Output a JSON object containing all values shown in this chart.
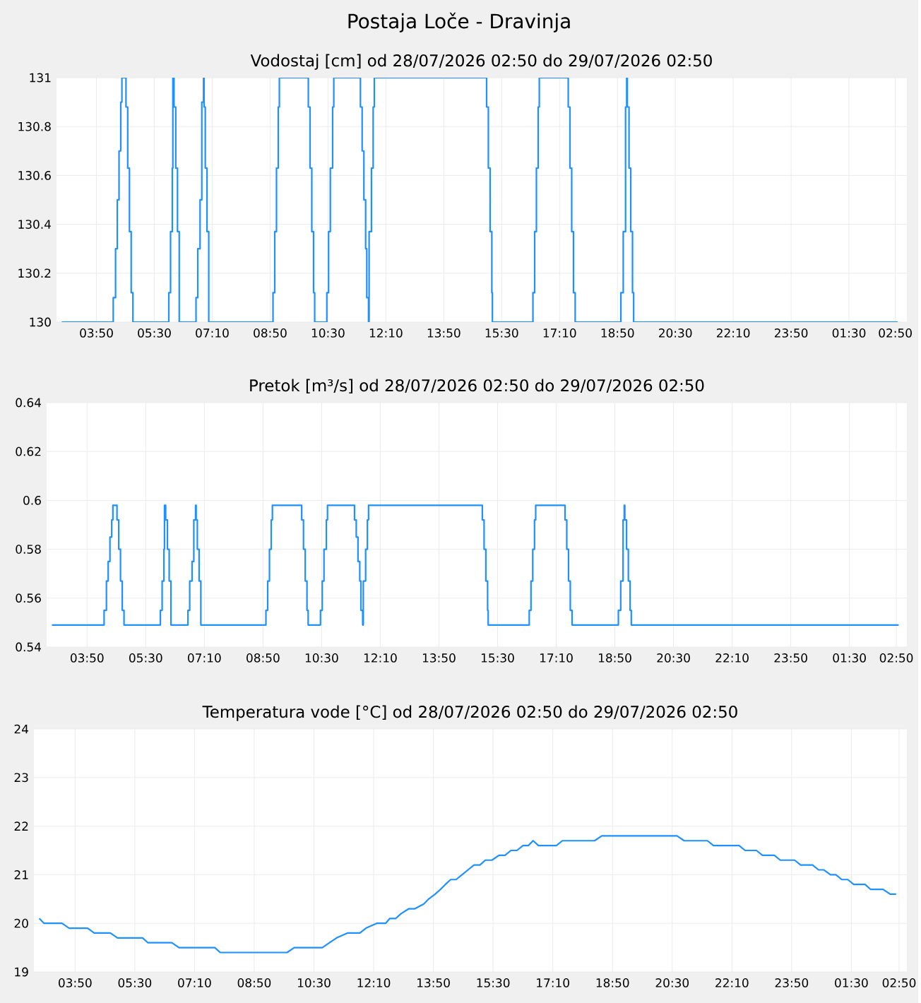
{
  "chart_data": [
    {
      "type": "step",
      "title": "Postaja Loče - Dravinja",
      "subtitle": "Vodostaj [cm] od 28/07/2026 02:50 do 29/07/2026 02:50",
      "color": "#1e90ff",
      "grid": true,
      "marker": "none",
      "line_style": "solid",
      "x": [
        "2026-07-28T02:50",
        "2026-07-28T04:19",
        "2026-07-28T04:23",
        "2026-07-28T04:26",
        "2026-07-28T04:29",
        "2026-07-28T04:32",
        "2026-07-28T04:34",
        "2026-07-28T04:41",
        "2026-07-28T04:44",
        "2026-07-28T04:47",
        "2026-07-28T04:50",
        "2026-07-28T04:53",
        "2026-07-28T05:55",
        "2026-07-28T05:58",
        "2026-07-28T06:01",
        "2026-07-28T06:02",
        "2026-07-28T06:04",
        "2026-07-28T06:07",
        "2026-07-28T06:10",
        "2026-07-28T06:13",
        "2026-07-28T06:42",
        "2026-07-28T06:45",
        "2026-07-28T06:49",
        "2026-07-28T06:52",
        "2026-07-28T06:55",
        "2026-07-28T06:56",
        "2026-07-28T06:58",
        "2026-07-28T07:01",
        "2026-07-28T07:04",
        "2026-07-28T08:55",
        "2026-07-28T08:58",
        "2026-07-28T09:01",
        "2026-07-28T09:04",
        "2026-07-28T09:06",
        "2026-07-28T09:56",
        "2026-07-28T09:59",
        "2026-07-28T10:02",
        "2026-07-28T10:05",
        "2026-07-28T10:07",
        "2026-07-28T10:28",
        "2026-07-28T10:31",
        "2026-07-28T10:34",
        "2026-07-28T10:38",
        "2026-07-28T10:40",
        "2026-07-28T11:26",
        "2026-07-28T11:29",
        "2026-07-28T11:32",
        "2026-07-28T11:35",
        "2026-07-28T11:37",
        "2026-07-28T11:40",
        "2026-07-28T11:41",
        "2026-07-28T11:45",
        "2026-07-28T11:48",
        "2026-07-28T11:50",
        "2026-07-28T15:04",
        "2026-07-28T15:07",
        "2026-07-28T15:10",
        "2026-07-28T15:13",
        "2026-07-28T15:14",
        "2026-07-28T16:24",
        "2026-07-28T16:27",
        "2026-07-28T16:30",
        "2026-07-28T16:33",
        "2026-07-28T16:35",
        "2026-07-28T17:25",
        "2026-07-28T17:28",
        "2026-07-28T17:31",
        "2026-07-28T17:34",
        "2026-07-28T17:37",
        "2026-07-28T18:56",
        "2026-07-28T19:00",
        "2026-07-28T19:04",
        "2026-07-28T19:06",
        "2026-07-28T19:07",
        "2026-07-28T19:10",
        "2026-07-28T19:13",
        "2026-07-28T19:16",
        "2026-07-28T19:18",
        "2026-07-29T02:54"
      ],
      "values": [
        130,
        130.1,
        130.3,
        130.5,
        130.7,
        130.9,
        131,
        130.88,
        130.63,
        130.37,
        130.12,
        130,
        130.12,
        130.37,
        130.63,
        131,
        130.88,
        130.63,
        130.37,
        130,
        130.1,
        130.3,
        130.5,
        130.9,
        131,
        130.88,
        130.63,
        130.37,
        130,
        130.12,
        130.37,
        130.63,
        130.88,
        131,
        130.88,
        130.63,
        130.37,
        130.12,
        130,
        130.12,
        130.37,
        130.63,
        130.88,
        131,
        130.88,
        130.7,
        130.5,
        130.3,
        130.1,
        130,
        130.37,
        130.63,
        130.88,
        131,
        130.88,
        130.63,
        130.37,
        130.12,
        130,
        130.12,
        130.37,
        130.63,
        130.88,
        131,
        130.88,
        130.63,
        130.37,
        130.12,
        130,
        130.12,
        130.37,
        130.88,
        131,
        130.88,
        130.63,
        130.37,
        130.12,
        130,
        130
      ],
      "xlim": [
        "2026-07-28T02:41",
        "2026-07-29T03:10"
      ],
      "ylim": [
        130,
        131
      ],
      "yticks": [
        130,
        130.2,
        130.4,
        130.6,
        130.8,
        131
      ],
      "xticks": [
        {
          "value": "2026-07-28T03:50",
          "label": "03:50"
        },
        {
          "value": "2026-07-28T05:30",
          "label": "05:30"
        },
        {
          "value": "2026-07-28T07:10",
          "label": "07:10"
        },
        {
          "value": "2026-07-28T08:50",
          "label": "08:50"
        },
        {
          "value": "2026-07-28T10:30",
          "label": "10:30"
        },
        {
          "value": "2026-07-28T12:10",
          "label": "12:10"
        },
        {
          "value": "2026-07-28T13:50",
          "label": "13:50"
        },
        {
          "value": "2026-07-28T15:30",
          "label": "15:30"
        },
        {
          "value": "2026-07-28T17:10",
          "label": "17:10"
        },
        {
          "value": "2026-07-28T18:50",
          "label": "18:50"
        },
        {
          "value": "2026-07-28T20:30",
          "label": "20:30"
        },
        {
          "value": "2026-07-28T22:10",
          "label": "22:10"
        },
        {
          "value": "2026-07-28T23:50",
          "label": "23:50"
        },
        {
          "value": "2026-07-29T01:30",
          "label": "01:30"
        },
        {
          "value": "2026-07-29T02:50",
          "label": "02:50"
        }
      ]
    },
    {
      "type": "step",
      "title": "Pretok [m³/s] od 28/07/2026 02:50 do 29/07/2026 02:50",
      "color": "#1e90ff",
      "grid": true,
      "marker": "none",
      "line_style": "solid",
      "x": [
        "2026-07-28T02:50",
        "2026-07-28T04:19",
        "2026-07-28T04:23",
        "2026-07-28T04:26",
        "2026-07-28T04:29",
        "2026-07-28T04:32",
        "2026-07-28T04:34",
        "2026-07-28T04:41",
        "2026-07-28T04:44",
        "2026-07-28T04:47",
        "2026-07-28T04:50",
        "2026-07-28T04:53",
        "2026-07-28T05:55",
        "2026-07-28T05:58",
        "2026-07-28T06:01",
        "2026-07-28T06:02",
        "2026-07-28T06:04",
        "2026-07-28T06:07",
        "2026-07-28T06:10",
        "2026-07-28T06:13",
        "2026-07-28T06:42",
        "2026-07-28T06:45",
        "2026-07-28T06:49",
        "2026-07-28T06:52",
        "2026-07-28T06:55",
        "2026-07-28T06:56",
        "2026-07-28T06:58",
        "2026-07-28T07:01",
        "2026-07-28T07:04",
        "2026-07-28T08:55",
        "2026-07-28T08:58",
        "2026-07-28T09:01",
        "2026-07-28T09:04",
        "2026-07-28T09:06",
        "2026-07-28T09:56",
        "2026-07-28T09:59",
        "2026-07-28T10:02",
        "2026-07-28T10:05",
        "2026-07-28T10:07",
        "2026-07-28T10:28",
        "2026-07-28T10:31",
        "2026-07-28T10:34",
        "2026-07-28T10:38",
        "2026-07-28T10:40",
        "2026-07-28T11:26",
        "2026-07-28T11:29",
        "2026-07-28T11:32",
        "2026-07-28T11:35",
        "2026-07-28T11:37",
        "2026-07-28T11:40",
        "2026-07-28T11:41",
        "2026-07-28T11:45",
        "2026-07-28T11:48",
        "2026-07-28T11:50",
        "2026-07-28T15:04",
        "2026-07-28T15:07",
        "2026-07-28T15:10",
        "2026-07-28T15:13",
        "2026-07-28T15:14",
        "2026-07-28T16:24",
        "2026-07-28T16:27",
        "2026-07-28T16:30",
        "2026-07-28T16:33",
        "2026-07-28T16:35",
        "2026-07-28T17:25",
        "2026-07-28T17:28",
        "2026-07-28T17:31",
        "2026-07-28T17:34",
        "2026-07-28T17:37",
        "2026-07-28T18:56",
        "2026-07-28T19:00",
        "2026-07-28T19:04",
        "2026-07-28T19:06",
        "2026-07-28T19:07",
        "2026-07-28T19:10",
        "2026-07-28T19:13",
        "2026-07-28T19:16",
        "2026-07-28T19:18",
        "2026-07-29T02:54"
      ],
      "values": [
        0.549,
        0.555,
        0.567,
        0.575,
        0.585,
        0.592,
        0.598,
        0.592,
        0.58,
        0.567,
        0.555,
        0.549,
        0.555,
        0.567,
        0.58,
        0.598,
        0.592,
        0.58,
        0.567,
        0.549,
        0.555,
        0.567,
        0.575,
        0.592,
        0.598,
        0.592,
        0.58,
        0.567,
        0.549,
        0.555,
        0.567,
        0.58,
        0.592,
        0.598,
        0.592,
        0.58,
        0.567,
        0.555,
        0.549,
        0.555,
        0.567,
        0.58,
        0.592,
        0.598,
        0.592,
        0.585,
        0.575,
        0.567,
        0.555,
        0.549,
        0.567,
        0.58,
        0.592,
        0.598,
        0.592,
        0.58,
        0.567,
        0.555,
        0.549,
        0.555,
        0.567,
        0.58,
        0.592,
        0.598,
        0.592,
        0.58,
        0.567,
        0.555,
        0.549,
        0.555,
        0.567,
        0.592,
        0.598,
        0.592,
        0.58,
        0.567,
        0.555,
        0.549,
        0.549
      ],
      "xlim": [
        "2026-07-28T02:41",
        "2026-07-29T03:08"
      ],
      "ylim": [
        0.54,
        0.64
      ],
      "yticks": [
        0.54,
        0.56,
        0.58,
        0.6,
        0.62,
        0.64
      ],
      "xticks": [
        {
          "value": "2026-07-28T03:50",
          "label": "03:50"
        },
        {
          "value": "2026-07-28T05:30",
          "label": "05:30"
        },
        {
          "value": "2026-07-28T07:10",
          "label": "07:10"
        },
        {
          "value": "2026-07-28T08:50",
          "label": "08:50"
        },
        {
          "value": "2026-07-28T10:30",
          "label": "10:30"
        },
        {
          "value": "2026-07-28T12:10",
          "label": "12:10"
        },
        {
          "value": "2026-07-28T13:50",
          "label": "13:50"
        },
        {
          "value": "2026-07-28T15:30",
          "label": "15:30"
        },
        {
          "value": "2026-07-28T17:10",
          "label": "17:10"
        },
        {
          "value": "2026-07-28T18:50",
          "label": "18:50"
        },
        {
          "value": "2026-07-28T20:30",
          "label": "20:30"
        },
        {
          "value": "2026-07-28T22:10",
          "label": "22:10"
        },
        {
          "value": "2026-07-28T23:50",
          "label": "23:50"
        },
        {
          "value": "2026-07-29T01:30",
          "label": "01:30"
        },
        {
          "value": "2026-07-29T02:50",
          "label": "02:50"
        }
      ]
    },
    {
      "type": "line",
      "title": "Temperatura vode [°C] od 28/07/2026 02:50 do 29/07/2026 02:50",
      "color": "#1e90ff",
      "grid": true,
      "marker": "none",
      "line_style": "solid",
      "x": [
        "2026-07-28T02:50",
        "2026-07-28T02:58",
        "2026-07-28T03:28",
        "2026-07-28T03:40",
        "2026-07-28T04:11",
        "2026-07-28T04:22",
        "2026-07-28T04:49",
        "2026-07-28T05:01",
        "2026-07-28T05:43",
        "2026-07-28T05:52",
        "2026-07-28T06:32",
        "2026-07-28T06:44",
        "2026-07-28T07:44",
        "2026-07-28T07:53",
        "2026-07-28T09:45",
        "2026-07-28T09:57",
        "2026-07-28T10:44",
        "2026-07-28T10:56",
        "2026-07-28T11:08",
        "2026-07-28T11:26",
        "2026-07-28T11:47",
        "2026-07-28T11:57",
        "2026-07-28T12:15",
        "2026-07-28T12:30",
        "2026-07-28T12:37",
        "2026-07-28T12:47",
        "2026-07-28T12:56",
        "2026-07-28T13:09",
        "2026-07-28T13:19",
        "2026-07-28T13:34",
        "2026-07-28T13:42",
        "2026-07-28T13:53",
        "2026-07-28T14:02",
        "2026-07-28T14:10",
        "2026-07-28T14:19",
        "2026-07-28T14:28",
        "2026-07-28T14:38",
        "2026-07-28T14:48",
        "2026-07-28T14:58",
        "2026-07-28T15:08",
        "2026-07-28T15:17",
        "2026-07-28T15:28",
        "2026-07-28T15:40",
        "2026-07-28T15:50",
        "2026-07-28T16:00",
        "2026-07-28T16:10",
        "2026-07-28T16:20",
        "2026-07-28T16:29",
        "2026-07-28T16:37",
        "2026-07-28T16:46",
        "2026-07-28T17:16",
        "2026-07-28T17:26",
        "2026-07-28T18:20",
        "2026-07-28T18:32",
        "2026-07-28T20:38",
        "2026-07-28T20:50",
        "2026-07-28T21:29",
        "2026-07-28T21:39",
        "2026-07-28T22:22",
        "2026-07-28T22:32",
        "2026-07-28T22:51",
        "2026-07-28T23:01",
        "2026-07-28T23:21",
        "2026-07-28T23:31",
        "2026-07-28T23:55",
        "2026-07-29T00:05",
        "2026-07-29T00:25",
        "2026-07-29T00:35",
        "2026-07-29T00:44",
        "2026-07-29T00:55",
        "2026-07-29T01:04",
        "2026-07-29T01:14",
        "2026-07-29T01:24",
        "2026-07-29T01:34",
        "2026-07-29T01:53",
        "2026-07-29T02:02",
        "2026-07-29T02:23",
        "2026-07-29T02:35",
        "2026-07-29T02:45"
      ],
      "values": [
        20.1,
        20.0,
        20.0,
        19.9,
        19.9,
        19.8,
        19.8,
        19.7,
        19.7,
        19.6,
        19.6,
        19.5,
        19.5,
        19.4,
        19.4,
        19.5,
        19.5,
        19.6,
        19.7,
        19.8,
        19.8,
        19.9,
        20.0,
        20.0,
        20.1,
        20.1,
        20.2,
        20.3,
        20.3,
        20.4,
        20.5,
        20.6,
        20.7,
        20.8,
        20.9,
        20.9,
        21.0,
        21.1,
        21.2,
        21.2,
        21.3,
        21.3,
        21.4,
        21.4,
        21.5,
        21.5,
        21.6,
        21.6,
        21.7,
        21.6,
        21.6,
        21.7,
        21.7,
        21.8,
        21.8,
        21.7,
        21.7,
        21.6,
        21.6,
        21.5,
        21.5,
        21.4,
        21.4,
        21.3,
        21.3,
        21.2,
        21.2,
        21.1,
        21.1,
        21.0,
        21.0,
        20.9,
        20.9,
        20.8,
        20.8,
        20.7,
        20.7,
        20.6,
        20.6
      ],
      "xlim": [
        "2026-07-28T02:41",
        "2026-07-29T03:03"
      ],
      "ylim": [
        19,
        24
      ],
      "yticks": [
        19,
        20,
        21,
        22,
        23,
        24
      ],
      "xticks": [
        {
          "value": "2026-07-28T03:50",
          "label": "03:50"
        },
        {
          "value": "2026-07-28T05:30",
          "label": "05:30"
        },
        {
          "value": "2026-07-28T07:10",
          "label": "07:10"
        },
        {
          "value": "2026-07-28T08:50",
          "label": "08:50"
        },
        {
          "value": "2026-07-28T10:30",
          "label": "10:30"
        },
        {
          "value": "2026-07-28T12:10",
          "label": "12:10"
        },
        {
          "value": "2026-07-28T13:50",
          "label": "13:50"
        },
        {
          "value": "2026-07-28T15:30",
          "label": "15:30"
        },
        {
          "value": "2026-07-28T17:10",
          "label": "17:10"
        },
        {
          "value": "2026-07-28T18:50",
          "label": "18:50"
        },
        {
          "value": "2026-07-28T20:30",
          "label": "20:30"
        },
        {
          "value": "2026-07-28T22:10",
          "label": "22:10"
        },
        {
          "value": "2026-07-28T23:50",
          "label": "23:50"
        },
        {
          "value": "2026-07-29T01:30",
          "label": "01:30"
        },
        {
          "value": "2026-07-29T02:50",
          "label": "02:50"
        }
      ]
    }
  ]
}
